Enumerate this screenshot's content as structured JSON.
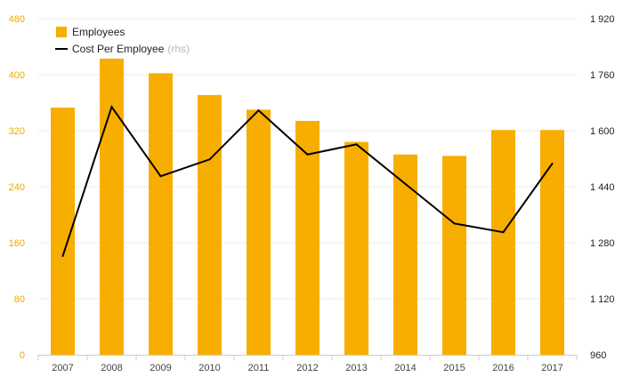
{
  "chart_data": {
    "type": "bar",
    "categories": [
      "2007",
      "2008",
      "2009",
      "2010",
      "2011",
      "2012",
      "2013",
      "2014",
      "2015",
      "2016",
      "2017"
    ],
    "series": [
      {
        "name": "Employees",
        "type": "bar",
        "axis": "left",
        "color": "#f8ae00",
        "values": [
          353,
          423,
          402,
          371,
          350,
          334,
          304,
          286,
          284,
          321,
          321
        ]
      },
      {
        "name": "Cost Per Employee",
        "legend_suffix": "(rhs)",
        "type": "line",
        "axis": "right",
        "color": "#000000",
        "values": [
          1242,
          1668,
          1470,
          1518,
          1658,
          1532,
          1561,
          1448,
          1335,
          1310,
          1506
        ]
      }
    ],
    "y_left": {
      "ylim": [
        0,
        480
      ],
      "ticks": [
        "0",
        "80",
        "160",
        "240",
        "320",
        "400",
        "480"
      ],
      "color": "#f2a900"
    },
    "y_right": {
      "ylim": [
        960,
        1920
      ],
      "ticks": [
        "960",
        "1 120",
        "1 280",
        "1 440",
        "1 600",
        "1 760",
        "1 920"
      ]
    },
    "grid": true,
    "legend": "top-left"
  }
}
